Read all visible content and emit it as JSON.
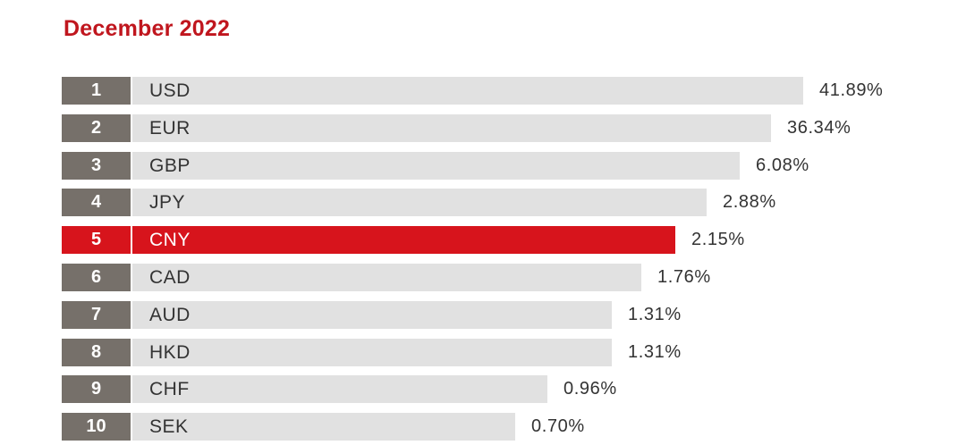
{
  "title": "December 2022",
  "colors": {
    "title": "#c0161e",
    "highlight": "#d7141c",
    "rank_box": "#76706a",
    "bar": "#e1e1e1",
    "text": "#333333"
  },
  "chart_data": {
    "type": "bar",
    "orientation": "horizontal",
    "title": "December 2022",
    "ranks": [
      "1",
      "2",
      "3",
      "4",
      "5",
      "6",
      "7",
      "8",
      "9",
      "10"
    ],
    "categories": [
      "USD",
      "EUR",
      "GBP",
      "JPY",
      "CNY",
      "CAD",
      "AUD",
      "HKD",
      "CHF",
      "SEK"
    ],
    "values": [
      41.89,
      36.34,
      6.08,
      2.88,
      2.15,
      1.76,
      1.31,
      1.31,
      0.96,
      0.7
    ],
    "value_labels": [
      "41.89%",
      "36.34%",
      "6.08%",
      "2.88%",
      "2.15%",
      "1.76%",
      "1.31%",
      "1.31%",
      "0.96%",
      "0.70%"
    ],
    "unit": "%",
    "highlighted_category": "CNY",
    "axis_scale": "non-linear",
    "grid": false,
    "legend": "none"
  }
}
